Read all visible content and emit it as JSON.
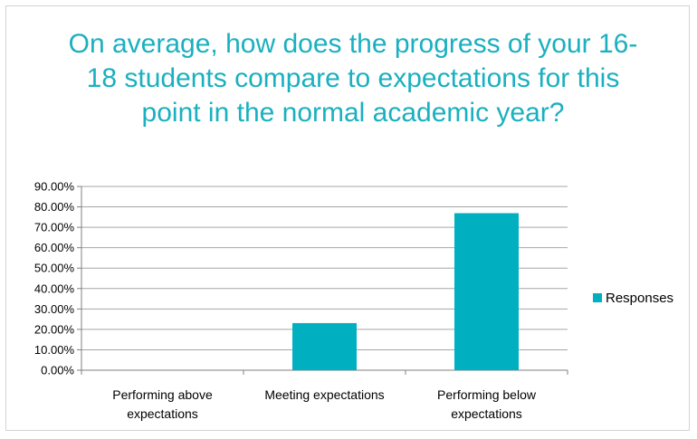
{
  "chart_data": {
    "type": "bar",
    "title": "On average, how does the progress of your 16-18 students compare to expectations for this point in the normal academic year?",
    "categories": [
      [
        "Performing above",
        "expectations"
      ],
      [
        "Meeting expectations"
      ],
      [
        "Performing below",
        "expectations"
      ]
    ],
    "series": [
      {
        "name": "Responses",
        "values": [
          0,
          0.2308,
          0.7692
        ],
        "color": "#00b0c0"
      }
    ],
    "yticks": [
      "0.00%",
      "10.00%",
      "20.00%",
      "30.00%",
      "40.00%",
      "50.00%",
      "60.00%",
      "70.00%",
      "80.00%",
      "90.00%"
    ],
    "ylim": [
      0,
      0.9
    ],
    "grid": true,
    "legend_position": "right"
  }
}
